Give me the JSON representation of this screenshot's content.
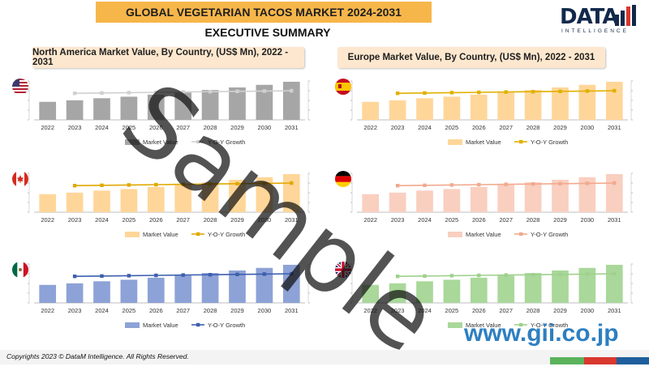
{
  "header": {
    "title": "GLOBAL VEGETARIAN TACOS MARKET 2024-2031",
    "subtitle": "EXECUTIVE SUMMARY",
    "logo_word": "DATA",
    "logo_sub": "INTELLIGENCE"
  },
  "sections": {
    "north_america": "North America Market Value, By Country, (US$ Mn), 2022 - 2031",
    "europe": "Europe Market Value, By Country, (US$ Mn), 2022 - 2031"
  },
  "footer": {
    "copyright": "Copyrights 2023 © DataM Intelligence. All Rights Reserved."
  },
  "watermark": {
    "text": "Sample",
    "site": "www.gii.co.jp"
  },
  "colors": {
    "banner": "#f7b64a",
    "section_bg": "#fde8cf",
    "footer_green": "#5bb35b",
    "footer_red": "#d9382e",
    "footer_blue": "#1f5f9e"
  },
  "chart_data": [
    {
      "id": "usa",
      "flag": "usa-flag-icon",
      "type": "bar+line",
      "bar_color": "#a6a6a6",
      "line_color": "#d0d0d0",
      "categories": [
        "2022",
        "2023",
        "2024",
        "2025",
        "2026",
        "2027",
        "2028",
        "2029",
        "2030",
        "2031"
      ],
      "series": [
        {
          "name": "Market Value",
          "type": "bar",
          "values": [
            35,
            38,
            42,
            45,
            49,
            53,
            58,
            63,
            68,
            74
          ]
        },
        {
          "name": "Y-O-Y Growth",
          "type": "line",
          "values": [
            null,
            7.2,
            7.3,
            7.4,
            7.5,
            7.6,
            7.7,
            7.8,
            7.9,
            8.0
          ]
        }
      ]
    },
    {
      "id": "spain",
      "flag": "spain-flag-icon",
      "type": "bar+line",
      "bar_color": "#ffd699",
      "line_color": "#e0b000",
      "categories": [
        "2022",
        "2023",
        "2024",
        "2025",
        "2026",
        "2027",
        "2028",
        "2029",
        "2030",
        "2031"
      ],
      "series": [
        {
          "name": "Market Value",
          "type": "bar",
          "values": [
            35,
            38,
            42,
            45,
            49,
            53,
            58,
            63,
            68,
            74
          ]
        },
        {
          "name": "Y-O-Y Growth",
          "type": "line",
          "values": [
            null,
            7.2,
            7.3,
            7.4,
            7.5,
            7.6,
            7.7,
            7.8,
            7.9,
            8.0
          ]
        }
      ]
    },
    {
      "id": "canada",
      "flag": "canada-flag-icon",
      "type": "bar+line",
      "bar_color": "#ffd699",
      "line_color": "#e0a800",
      "categories": [
        "2022",
        "2023",
        "2024",
        "2025",
        "2026",
        "2027",
        "2028",
        "2029",
        "2030",
        "2031"
      ],
      "series": [
        {
          "name": "Market Value",
          "type": "bar",
          "values": [
            35,
            38,
            42,
            45,
            49,
            53,
            58,
            63,
            68,
            74
          ]
        },
        {
          "name": "Y-O-Y Growth",
          "type": "line",
          "values": [
            null,
            7.2,
            7.3,
            7.4,
            7.5,
            7.6,
            7.7,
            7.8,
            7.9,
            8.0
          ]
        }
      ]
    },
    {
      "id": "germany",
      "flag": "germany-flag-icon",
      "type": "bar+line",
      "bar_color": "#f9cfc0",
      "line_color": "#f2a98e",
      "categories": [
        "2022",
        "2023",
        "2024",
        "2025",
        "2026",
        "2027",
        "2028",
        "2029",
        "2030",
        "2031"
      ],
      "series": [
        {
          "name": "Market Value",
          "type": "bar",
          "values": [
            35,
            38,
            42,
            45,
            49,
            53,
            58,
            63,
            68,
            74
          ]
        },
        {
          "name": "Y-O-Y Growth",
          "type": "line",
          "values": [
            null,
            7.2,
            7.3,
            7.4,
            7.5,
            7.6,
            7.7,
            7.8,
            7.9,
            8.0
          ]
        }
      ]
    },
    {
      "id": "mexico",
      "flag": "mexico-flag-icon",
      "type": "bar+line",
      "bar_color": "#8da2d6",
      "line_color": "#3d5fae",
      "categories": [
        "2022",
        "2023",
        "2024",
        "2025",
        "2026",
        "2027",
        "2028",
        "2029",
        "2030",
        "2031"
      ],
      "series": [
        {
          "name": "Market Value",
          "type": "bar",
          "values": [
            35,
            38,
            42,
            45,
            49,
            53,
            58,
            63,
            68,
            74
          ]
        },
        {
          "name": "Y-O-Y Growth",
          "type": "line",
          "values": [
            null,
            7.2,
            7.3,
            7.4,
            7.5,
            7.6,
            7.7,
            7.8,
            7.9,
            8.0
          ]
        }
      ]
    },
    {
      "id": "uk",
      "flag": "uk-flag-icon",
      "type": "bar+line",
      "bar_color": "#a9d89a",
      "line_color": "#9fd08c",
      "categories": [
        "2022",
        "2023",
        "2024",
        "2025",
        "2026",
        "2027",
        "2028",
        "2029",
        "2030",
        "2031"
      ],
      "series": [
        {
          "name": "Market Value",
          "type": "bar",
          "values": [
            35,
            38,
            42,
            45,
            49,
            53,
            58,
            63,
            68,
            74
          ]
        },
        {
          "name": "Y-O-Y Growth",
          "type": "line",
          "values": [
            null,
            7.2,
            7.3,
            7.4,
            7.5,
            7.6,
            7.7,
            7.8,
            7.9,
            8.0
          ]
        }
      ]
    }
  ]
}
